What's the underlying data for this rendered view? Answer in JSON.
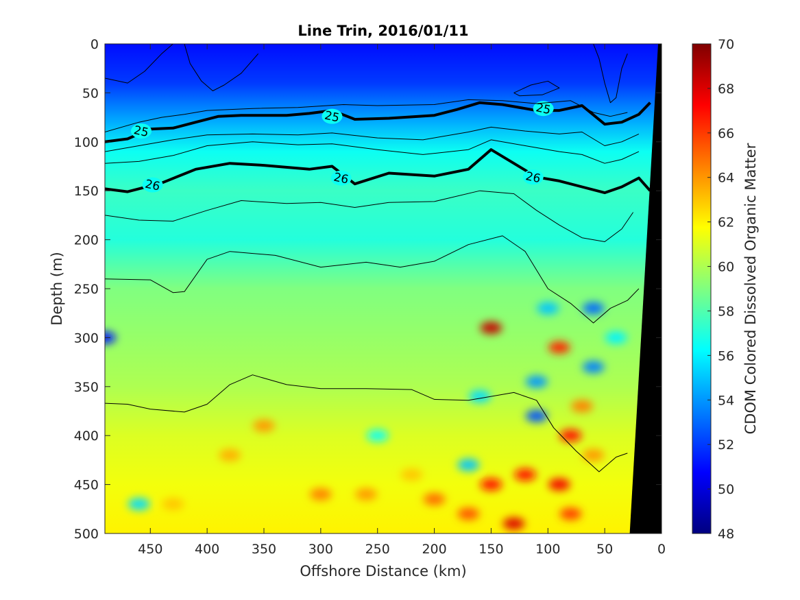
{
  "chart_data": {
    "type": "heatmap",
    "title": "Line Trin, 2016/01/11",
    "xlabel": "Offshore Distance (km)",
    "ylabel": "Depth (m)",
    "colorbar_label": "CDOM Colored Dissolved Organic Matter",
    "xlim": [
      490,
      0
    ],
    "ylim": [
      0,
      500
    ],
    "x_reversed": true,
    "y_reversed": true,
    "x_ticks": [
      450,
      400,
      350,
      300,
      250,
      200,
      150,
      100,
      50,
      0
    ],
    "y_ticks": [
      0,
      50,
      100,
      150,
      200,
      250,
      300,
      350,
      400,
      450,
      500
    ],
    "clim": [
      48,
      70
    ],
    "colorbar_ticks": [
      48,
      50,
      52,
      54,
      56,
      58,
      60,
      62,
      64,
      66,
      68,
      70
    ],
    "colormap": "jet",
    "profile": [
      {
        "depth": 0,
        "value": 51.0
      },
      {
        "depth": 40,
        "value": 52.0
      },
      {
        "depth": 80,
        "value": 54.5
      },
      {
        "depth": 110,
        "value": 56.5
      },
      {
        "depth": 150,
        "value": 57.5
      },
      {
        "depth": 200,
        "value": 57.0
      },
      {
        "depth": 250,
        "value": 59.0
      },
      {
        "depth": 300,
        "value": 59.5
      },
      {
        "depth": 350,
        "value": 60.0
      },
      {
        "depth": 400,
        "value": 61.0
      },
      {
        "depth": 450,
        "value": 61.5
      },
      {
        "depth": 500,
        "value": 62.0
      }
    ],
    "isopycnals": [
      {
        "level": "25",
        "label": "25",
        "bold": true,
        "points": [
          [
            490,
            100
          ],
          [
            470,
            97
          ],
          [
            450,
            87
          ],
          [
            430,
            86
          ],
          [
            410,
            80
          ],
          [
            390,
            74
          ],
          [
            370,
            73
          ],
          [
            330,
            73
          ],
          [
            310,
            71
          ],
          [
            290,
            68
          ],
          [
            270,
            77
          ],
          [
            240,
            76
          ],
          [
            200,
            73
          ],
          [
            180,
            67
          ],
          [
            160,
            60
          ],
          [
            140,
            62
          ],
          [
            110,
            68
          ],
          [
            90,
            68
          ],
          [
            70,
            63
          ],
          [
            50,
            82
          ],
          [
            35,
            80
          ],
          [
            20,
            72
          ],
          [
            10,
            60
          ]
        ],
        "label_positions": [
          [
            458,
            89
          ],
          [
            290,
            74
          ],
          [
            104,
            66
          ]
        ]
      },
      {
        "level": "26",
        "label": "26",
        "bold": true,
        "points": [
          [
            490,
            148
          ],
          [
            470,
            151
          ],
          [
            440,
            142
          ],
          [
            410,
            128
          ],
          [
            380,
            122
          ],
          [
            350,
            124
          ],
          [
            310,
            128
          ],
          [
            290,
            125
          ],
          [
            270,
            143
          ],
          [
            240,
            132
          ],
          [
            200,
            135
          ],
          [
            170,
            128
          ],
          [
            150,
            108
          ],
          [
            130,
            122
          ],
          [
            110,
            136
          ],
          [
            90,
            140
          ],
          [
            70,
            146
          ],
          [
            50,
            152
          ],
          [
            35,
            146
          ],
          [
            20,
            137
          ],
          [
            10,
            150
          ]
        ],
        "label_positions": [
          [
            448,
            144
          ],
          [
            282,
            137
          ],
          [
            113,
            136
          ]
        ]
      },
      {
        "level": "",
        "label": "",
        "bold": false,
        "points": [
          [
            490,
            175
          ],
          [
            460,
            180
          ],
          [
            430,
            181
          ],
          [
            400,
            170
          ],
          [
            370,
            160
          ],
          [
            330,
            163
          ],
          [
            300,
            162
          ],
          [
            270,
            167
          ],
          [
            240,
            162
          ],
          [
            200,
            161
          ],
          [
            160,
            150
          ],
          [
            130,
            153
          ],
          [
            110,
            170
          ],
          [
            90,
            185
          ],
          [
            70,
            198
          ],
          [
            50,
            202
          ],
          [
            35,
            189
          ],
          [
            25,
            172
          ]
        ]
      },
      {
        "level": "",
        "label": "",
        "bold": false,
        "points": [
          [
            490,
            240
          ],
          [
            450,
            241
          ],
          [
            430,
            254
          ],
          [
            420,
            253
          ],
          [
            400,
            220
          ],
          [
            380,
            212
          ],
          [
            340,
            216
          ],
          [
            300,
            228
          ],
          [
            260,
            223
          ],
          [
            230,
            228
          ],
          [
            200,
            222
          ],
          [
            170,
            205
          ],
          [
            140,
            196
          ],
          [
            120,
            212
          ],
          [
            100,
            250
          ],
          [
            80,
            265
          ],
          [
            60,
            285
          ],
          [
            45,
            270
          ],
          [
            30,
            262
          ],
          [
            20,
            250
          ]
        ]
      },
      {
        "level": "",
        "label": "",
        "bold": false,
        "points": [
          [
            490,
            367
          ],
          [
            470,
            368
          ],
          [
            450,
            373
          ],
          [
            420,
            376
          ],
          [
            400,
            368
          ],
          [
            380,
            348
          ],
          [
            360,
            338
          ],
          [
            330,
            348
          ],
          [
            300,
            352
          ],
          [
            260,
            352
          ],
          [
            220,
            353
          ],
          [
            200,
            363
          ],
          [
            170,
            364
          ],
          [
            150,
            360
          ],
          [
            130,
            356
          ],
          [
            110,
            364
          ],
          [
            95,
            392
          ],
          [
            75,
            416
          ],
          [
            55,
            437
          ],
          [
            40,
            422
          ],
          [
            30,
            418
          ]
        ]
      },
      {
        "level": "",
        "label": "",
        "bold": false,
        "points": [
          [
            490,
            90
          ],
          [
            460,
            80
          ],
          [
            440,
            75
          ],
          [
            420,
            72
          ],
          [
            400,
            68
          ],
          [
            360,
            66
          ],
          [
            320,
            65
          ],
          [
            280,
            62
          ],
          [
            250,
            63
          ],
          [
            200,
            62
          ],
          [
            170,
            57
          ],
          [
            140,
            58
          ],
          [
            110,
            61
          ],
          [
            80,
            58
          ],
          [
            60,
            70
          ],
          [
            45,
            74
          ],
          [
            30,
            70
          ]
        ]
      },
      {
        "level": "",
        "label": "",
        "bold": false,
        "points": [
          [
            490,
            110
          ],
          [
            460,
            104
          ],
          [
            430,
            98
          ],
          [
            400,
            93
          ],
          [
            360,
            92
          ],
          [
            320,
            93
          ],
          [
            290,
            91
          ],
          [
            250,
            96
          ],
          [
            210,
            98
          ],
          [
            170,
            90
          ],
          [
            150,
            85
          ],
          [
            120,
            89
          ],
          [
            90,
            92
          ],
          [
            70,
            90
          ],
          [
            50,
            104
          ],
          [
            35,
            100
          ],
          [
            20,
            92
          ]
        ]
      },
      {
        "level": "",
        "label": "",
        "bold": false,
        "points": [
          [
            490,
            122
          ],
          [
            460,
            120
          ],
          [
            430,
            114
          ],
          [
            400,
            104
          ],
          [
            360,
            100
          ],
          [
            320,
            103
          ],
          [
            290,
            102
          ],
          [
            250,
            108
          ],
          [
            210,
            113
          ],
          [
            170,
            108
          ],
          [
            150,
            98
          ],
          [
            120,
            104
          ],
          [
            90,
            110
          ],
          [
            70,
            113
          ],
          [
            50,
            122
          ],
          [
            35,
            118
          ],
          [
            20,
            110
          ]
        ]
      },
      {
        "level": "",
        "label": "",
        "bold": false,
        "points": [
          [
            130,
            50
          ],
          [
            115,
            42
          ],
          [
            100,
            38
          ],
          [
            90,
            45
          ],
          [
            105,
            52
          ],
          [
            125,
            53
          ],
          [
            130,
            50
          ]
        ]
      },
      {
        "level": "",
        "label": "",
        "bold": false,
        "points": [
          [
            490,
            35
          ],
          [
            470,
            40
          ],
          [
            455,
            28
          ],
          [
            440,
            10
          ],
          [
            430,
            0
          ]
        ]
      },
      {
        "level": "",
        "label": "",
        "bold": false,
        "points": [
          [
            420,
            0
          ],
          [
            415,
            20
          ],
          [
            405,
            38
          ],
          [
            395,
            48
          ],
          [
            385,
            42
          ],
          [
            370,
            30
          ],
          [
            355,
            10
          ]
        ]
      },
      {
        "level": "",
        "label": "",
        "bold": false,
        "points": [
          [
            60,
            0
          ],
          [
            55,
            15
          ],
          [
            50,
            40
          ],
          [
            45,
            60
          ],
          [
            40,
            55
          ],
          [
            35,
            25
          ],
          [
            30,
            10
          ]
        ]
      }
    ],
    "patches": [
      {
        "x": 150,
        "y": 290,
        "value": 68.5
      },
      {
        "x": 130,
        "y": 490,
        "value": 68.0
      },
      {
        "x": 80,
        "y": 400,
        "value": 67.0
      },
      {
        "x": 90,
        "y": 310,
        "value": 66.5
      },
      {
        "x": 150,
        "y": 450,
        "value": 67.0
      },
      {
        "x": 90,
        "y": 450,
        "value": 67.5
      },
      {
        "x": 120,
        "y": 440,
        "value": 67.0
      },
      {
        "x": 60,
        "y": 270,
        "value": 53.0
      },
      {
        "x": 110,
        "y": 380,
        "value": 52.5
      },
      {
        "x": 490,
        "y": 300,
        "value": 51.0
      },
      {
        "x": 70,
        "y": 370,
        "value": 64.5
      },
      {
        "x": 200,
        "y": 465,
        "value": 65.0
      },
      {
        "x": 260,
        "y": 460,
        "value": 64.0
      },
      {
        "x": 170,
        "y": 480,
        "value": 65.5
      },
      {
        "x": 110,
        "y": 345,
        "value": 54.0
      },
      {
        "x": 60,
        "y": 330,
        "value": 53.5
      },
      {
        "x": 170,
        "y": 430,
        "value": 55.0
      },
      {
        "x": 80,
        "y": 480,
        "value": 66.0
      },
      {
        "x": 60,
        "y": 420,
        "value": 64.0
      },
      {
        "x": 350,
        "y": 390,
        "value": 64.0
      },
      {
        "x": 300,
        "y": 460,
        "value": 64.5
      },
      {
        "x": 220,
        "y": 440,
        "value": 63.0
      },
      {
        "x": 380,
        "y": 420,
        "value": 63.5
      },
      {
        "x": 430,
        "y": 470,
        "value": 63.0
      },
      {
        "x": 100,
        "y": 270,
        "value": 55.0
      },
      {
        "x": 40,
        "y": 300,
        "value": 56.0
      },
      {
        "x": 160,
        "y": 360,
        "value": 55.5
      },
      {
        "x": 460,
        "y": 470,
        "value": 55.5
      },
      {
        "x": 250,
        "y": 400,
        "value": 56.5
      }
    ],
    "bathymetry": [
      [
        28,
        500
      ],
      [
        3,
        0
      ],
      [
        0,
        0
      ],
      [
        0,
        500
      ]
    ]
  }
}
